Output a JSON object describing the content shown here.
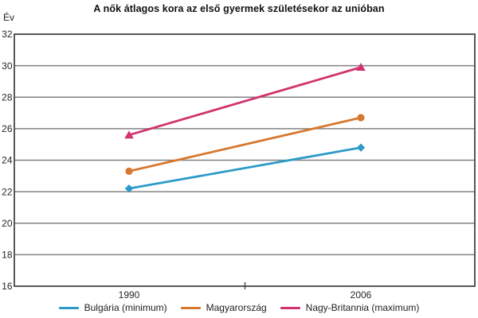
{
  "chart": {
    "title": "A nők átlagos kora az első gyermek születésekor az unióban",
    "ylabel": "Év"
  },
  "style": {
    "grid_color": "#828282",
    "axis_color": "#454545",
    "tick_text_color": "#262626",
    "background": "#ffffff"
  },
  "chart_data": {
    "type": "line",
    "title": "A nők átlagos kora az első gyermek születésekor az unióban",
    "xlabel": "",
    "ylabel": "Év",
    "categories": [
      "1990",
      "2006"
    ],
    "x": [
      1990,
      2006
    ],
    "series": [
      {
        "name": "Bulgária (minimum)",
        "values": [
          22.2,
          24.8
        ],
        "color": "#2D9BC8",
        "marker": "diamond"
      },
      {
        "name": "Magyarország",
        "values": [
          23.3,
          26.7
        ],
        "color": "#D6782F",
        "marker": "circle"
      },
      {
        "name": "Nagy-Britannia (maximum)",
        "values": [
          25.6,
          29.9
        ],
        "color": "#D1346E",
        "marker": "triangle"
      }
    ],
    "ylim": [
      16,
      32
    ],
    "yticks": [
      16,
      18,
      20,
      22,
      24,
      26,
      28,
      30,
      32
    ],
    "grid": true,
    "legend_position": "bottom"
  }
}
